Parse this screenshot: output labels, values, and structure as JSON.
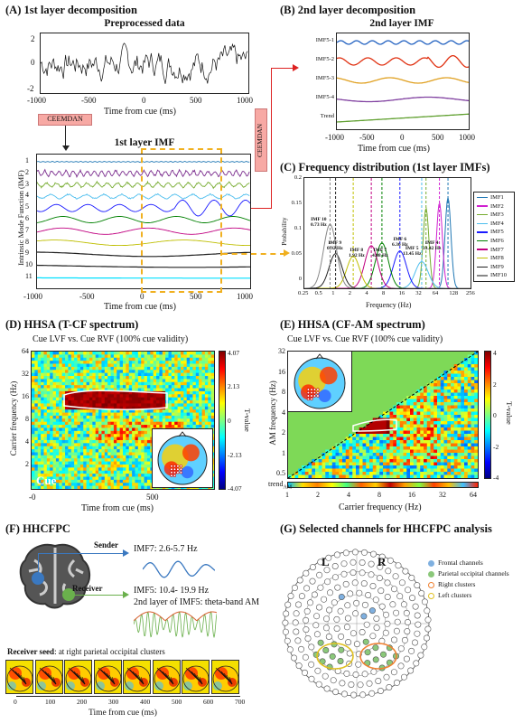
{
  "panelA": {
    "label": "(A) 1st layer decomposition",
    "preprocessed_title": "Preprocessed data",
    "preprocessed_yticks": [
      "2",
      "0",
      "-2"
    ],
    "xticks": [
      "-1000",
      "-500",
      "0",
      "500",
      "1000"
    ],
    "xlabel": "Time from cue (ms)",
    "ceemdan": "CEEMDAN",
    "imf_title": "1st layer IMF",
    "imf_ylabel": "Intrinsic Mode Function (IMF)",
    "imf_ticks": [
      "1",
      "2",
      "3",
      "4",
      "5",
      "6",
      "7",
      "8",
      "9",
      "10",
      "11"
    ],
    "imf_colors": [
      "#1f77b4",
      "#7b2d8e",
      "#77ac30",
      "#4dbeee",
      "#1a1aff",
      "#008000",
      "#c00080",
      "#bfbf00",
      "#222222",
      "#222222",
      "#00e0ff"
    ]
  },
  "panelB": {
    "label": "(B) 2nd layer decomposition",
    "title": "2nd layer IMF",
    "labels": [
      "IMF5-1",
      "IMF5-2",
      "IMF5-3",
      "IMF5-4",
      "Trend"
    ],
    "colors": [
      "#2060c0",
      "#e03010",
      "#e0a020",
      "#8040a0",
      "#60a030"
    ],
    "xticks": [
      "-1000",
      "-500",
      "0",
      "500",
      "1000"
    ],
    "xlabel": "Time from cue (ms)",
    "ceemdan": "CEEMDAN"
  },
  "panelC": {
    "label": "(C) Frequency distribution (1st layer IMFs)",
    "ylabel": "Probability",
    "xlabel": "Frequency (Hz)",
    "yticks": [
      "0.2",
      "0.15",
      "0.1",
      "0.05",
      "0"
    ],
    "xticks": [
      "0.25",
      "0.5",
      "1",
      "2",
      "4",
      "8",
      "16",
      "32",
      "64",
      "128",
      "256"
    ],
    "legend": [
      "IMF1",
      "IMF2",
      "IMF3",
      "IMF4",
      "IMF5",
      "IMF6",
      "IMF7",
      "IMF8",
      "IMF9",
      "IMF10"
    ],
    "colors": [
      "#1f77b4",
      "#d020d0",
      "#77ac30",
      "#4dbeee",
      "#1a1aff",
      "#008000",
      "#c00080",
      "#bfbf00",
      "#222222",
      "#888888"
    ],
    "peak_labels": [
      {
        "name": "IMF 10",
        "freq": "0.73 Hz"
      },
      {
        "name": "IMF 9",
        "freq": "0.92 Hz"
      },
      {
        "name": "IMF 8",
        "freq": "1.92 Hz"
      },
      {
        "name": "IMF 7",
        "freq": "4.08 Hz"
      },
      {
        "name": "IMF 6",
        "freq": "6.36 Hz"
      },
      {
        "name": "IMF 5",
        "freq": "13.45 Hz"
      },
      {
        "name": "IMF 4",
        "freq": "33.42 Hz"
      }
    ]
  },
  "panelD": {
    "label": "(D) HHSA (T-CF spectrum)",
    "subtitle": "Cue LVF vs. Cue RVF (100% cue validity)",
    "ylabel": "Carrier frequency (Hz)",
    "yticks": [
      "64",
      "32",
      "16",
      "8",
      "4",
      "2"
    ],
    "xticks": [
      "-0",
      "500"
    ],
    "xlabel": "Time from cue (ms)",
    "cbar_ticks": [
      "4.07",
      "2.13",
      "0",
      "-2.13",
      "-4.07"
    ],
    "cbar_label": "T-value",
    "cue": "Cue"
  },
  "panelE": {
    "label": "(E) HHSA (CF-AM spectrum)",
    "subtitle": "Cue LVF vs. Cue RVF (100% cue validity)",
    "ylabel": "AM frequency (Hz)",
    "yticks": [
      "32",
      "16",
      "8",
      "4",
      "2",
      "1",
      "0.5"
    ],
    "xticks": [
      "1",
      "2",
      "4",
      "8",
      "16",
      "32",
      "64"
    ],
    "xlabel": "Carrier frequency (Hz)",
    "trend_label": "trend",
    "trend_sub": "AM",
    "cbar_ticks": [
      "4",
      "2",
      "0",
      "-2",
      "-4"
    ],
    "cbar_label": "T-value"
  },
  "panelF": {
    "label": "(F) HHCFPC",
    "sender": "Sender",
    "sender_text": "IMF7: 2.6-5.7 Hz",
    "receiver": "Receiver",
    "receiver_line1": "IMF5: 10.4- 19.9 Hz",
    "receiver_line2": "2nd layer of IMF5: theta-band AM",
    "seed_label": "Receiver seed",
    "seed_rest": ": at right parietal occipital clusters",
    "xticks": [
      "0",
      "100",
      "200",
      "300",
      "400",
      "500",
      "600",
      "700"
    ],
    "xlabel": "Time from cue (ms)"
  },
  "panelG": {
    "label": "(G) Selected channels for HHCFPC analysis",
    "L": "L",
    "R": "R",
    "legend": [
      "Frontal channels",
      "Parietal occipital channels",
      "Right clusters",
      "Left clusters"
    ],
    "legend_colors": [
      "#7fb0e0",
      "#8bc87a",
      "#f08030",
      "#e0c020"
    ]
  }
}
